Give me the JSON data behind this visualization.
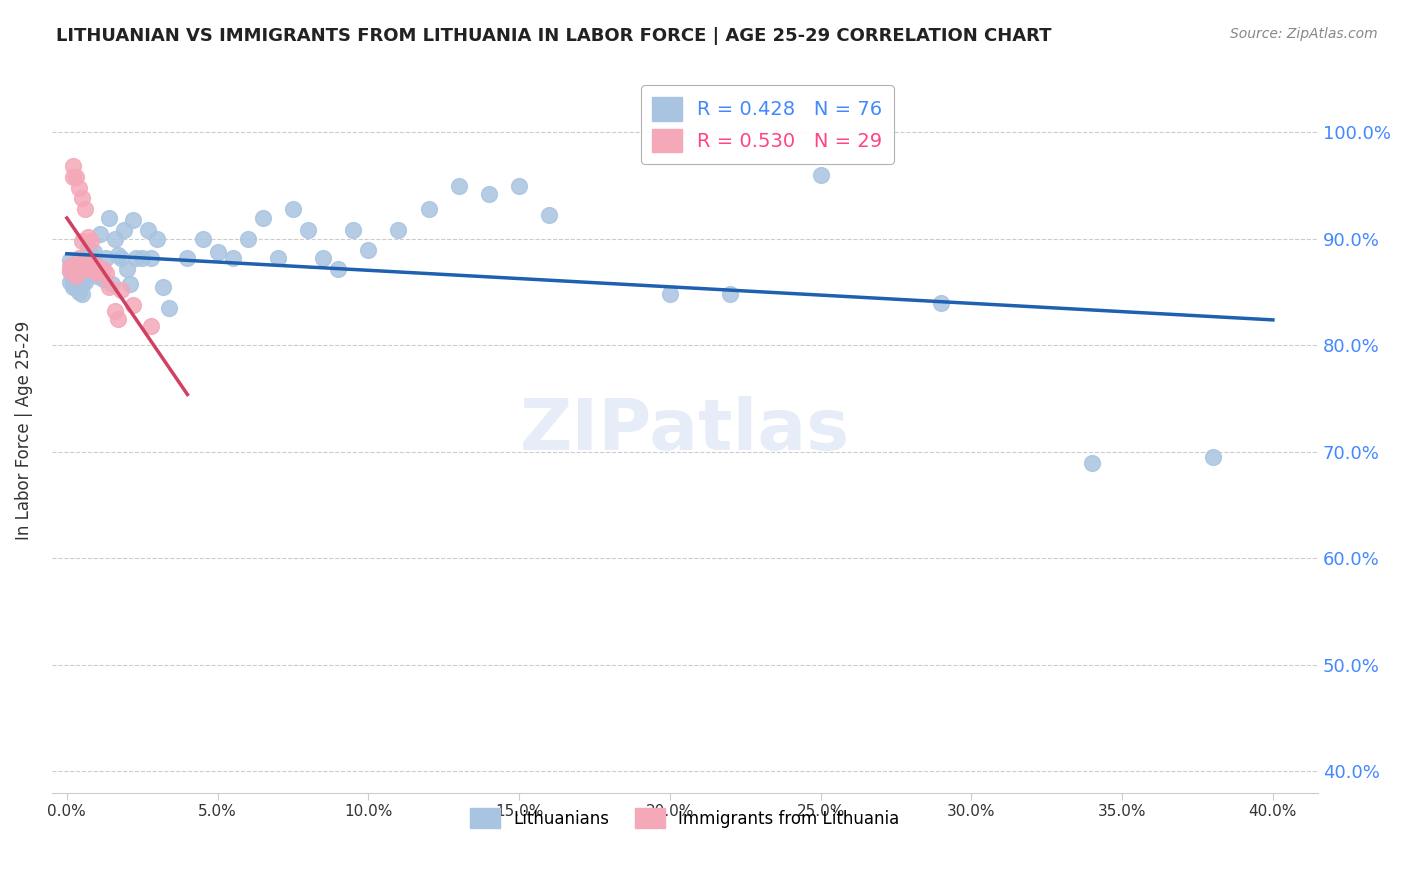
{
  "title": "LITHUANIAN VS IMMIGRANTS FROM LITHUANIA IN LABOR FORCE | AGE 25-29 CORRELATION CHART",
  "source": "Source: ZipAtlas.com",
  "ylabel": "In Labor Force | Age 25-29",
  "legend_labels": [
    "Lithuanians",
    "Immigrants from Lithuania"
  ],
  "blue_R": 0.428,
  "blue_N": 76,
  "pink_R": 0.53,
  "pink_N": 29,
  "blue_color": "#a8c4e0",
  "pink_color": "#f4a8b8",
  "blue_line_color": "#2060b0",
  "pink_line_color": "#d04060",
  "blue_x": [
    0.001,
    0.001,
    0.001,
    0.002,
    0.002,
    0.002,
    0.002,
    0.003,
    0.003,
    0.003,
    0.003,
    0.003,
    0.004,
    0.004,
    0.004,
    0.004,
    0.005,
    0.005,
    0.005,
    0.005,
    0.006,
    0.006,
    0.006,
    0.007,
    0.007,
    0.007,
    0.008,
    0.008,
    0.009,
    0.009,
    0.01,
    0.01,
    0.011,
    0.012,
    0.013,
    0.014,
    0.015,
    0.016,
    0.017,
    0.018,
    0.019,
    0.02,
    0.021,
    0.022,
    0.023,
    0.025,
    0.027,
    0.028,
    0.03,
    0.032,
    0.034,
    0.04,
    0.045,
    0.05,
    0.055,
    0.06,
    0.065,
    0.07,
    0.075,
    0.08,
    0.085,
    0.09,
    0.095,
    0.1,
    0.11,
    0.12,
    0.13,
    0.14,
    0.15,
    0.16,
    0.2,
    0.22,
    0.25,
    0.29,
    0.34,
    0.38
  ],
  "blue_y": [
    0.87,
    0.88,
    0.86,
    0.875,
    0.87,
    0.86,
    0.855,
    0.875,
    0.87,
    0.865,
    0.86,
    0.855,
    0.87,
    0.865,
    0.86,
    0.85,
    0.875,
    0.868,
    0.858,
    0.848,
    0.882,
    0.872,
    0.86,
    0.892,
    0.88,
    0.868,
    0.885,
    0.875,
    0.888,
    0.878,
    0.875,
    0.865,
    0.905,
    0.862,
    0.882,
    0.92,
    0.858,
    0.9,
    0.885,
    0.882,
    0.908,
    0.872,
    0.858,
    0.918,
    0.882,
    0.882,
    0.908,
    0.882,
    0.9,
    0.855,
    0.835,
    0.882,
    0.9,
    0.888,
    0.882,
    0.9,
    0.92,
    0.882,
    0.928,
    0.908,
    0.882,
    0.872,
    0.908,
    0.89,
    0.908,
    0.928,
    0.95,
    0.942,
    0.95,
    0.922,
    0.848,
    0.848,
    0.96,
    0.84,
    0.69,
    0.695
  ],
  "pink_x": [
    0.001,
    0.001,
    0.002,
    0.002,
    0.003,
    0.003,
    0.003,
    0.004,
    0.004,
    0.005,
    0.005,
    0.005,
    0.006,
    0.006,
    0.007,
    0.007,
    0.008,
    0.008,
    0.009,
    0.01,
    0.011,
    0.012,
    0.013,
    0.014,
    0.016,
    0.017,
    0.018,
    0.022,
    0.028
  ],
  "pink_y": [
    0.875,
    0.87,
    0.968,
    0.958,
    0.958,
    0.872,
    0.865,
    0.948,
    0.882,
    0.938,
    0.898,
    0.872,
    0.928,
    0.878,
    0.902,
    0.872,
    0.898,
    0.878,
    0.878,
    0.868,
    0.868,
    0.872,
    0.868,
    0.855,
    0.832,
    0.825,
    0.852,
    0.838,
    0.818
  ],
  "xlim": [
    -0.005,
    0.415
  ],
  "ylim": [
    0.38,
    1.06
  ],
  "yticks": [
    0.4,
    0.5,
    0.6,
    0.7,
    0.8,
    0.9,
    1.0
  ],
  "xticks": [
    0.0,
    0.05,
    0.1,
    0.15,
    0.2,
    0.25,
    0.3,
    0.35,
    0.4
  ]
}
